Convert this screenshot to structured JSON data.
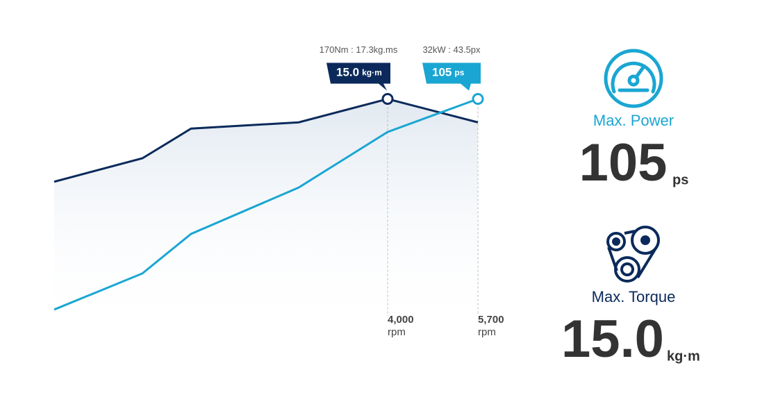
{
  "chart_data": {
    "type": "line",
    "categories": [
      null,
      null,
      null,
      null,
      "4,000",
      "5,700"
    ],
    "x_unit": "rpm",
    "ylim": [
      0,
      16
    ],
    "y2lim": [
      0,
      112
    ],
    "series": [
      {
        "name": "Torque",
        "color": "#0b2a5b",
        "values": [
          9.7,
          11.2,
          13.1,
          13.5,
          15.0,
          13.5
        ],
        "peak_note": "170Nm : 17.3kg.ms",
        "peak_value": "15.0",
        "peak_unit": "kg·m"
      },
      {
        "name": "Power",
        "color": "#1aa6d2",
        "axis": "y2",
        "values": [
          10.6,
          26.8,
          44.5,
          65.3,
          90.2,
          105
        ],
        "peak_note": "32kW : 43.5px",
        "peak_value": "105",
        "peak_unit": "ps"
      }
    ]
  },
  "specs": {
    "power": {
      "label": "Max. Power",
      "value": "105",
      "unit": "ps"
    },
    "torque": {
      "label": "Max. Torque",
      "value": "15.0",
      "unit": "kg·m"
    }
  }
}
